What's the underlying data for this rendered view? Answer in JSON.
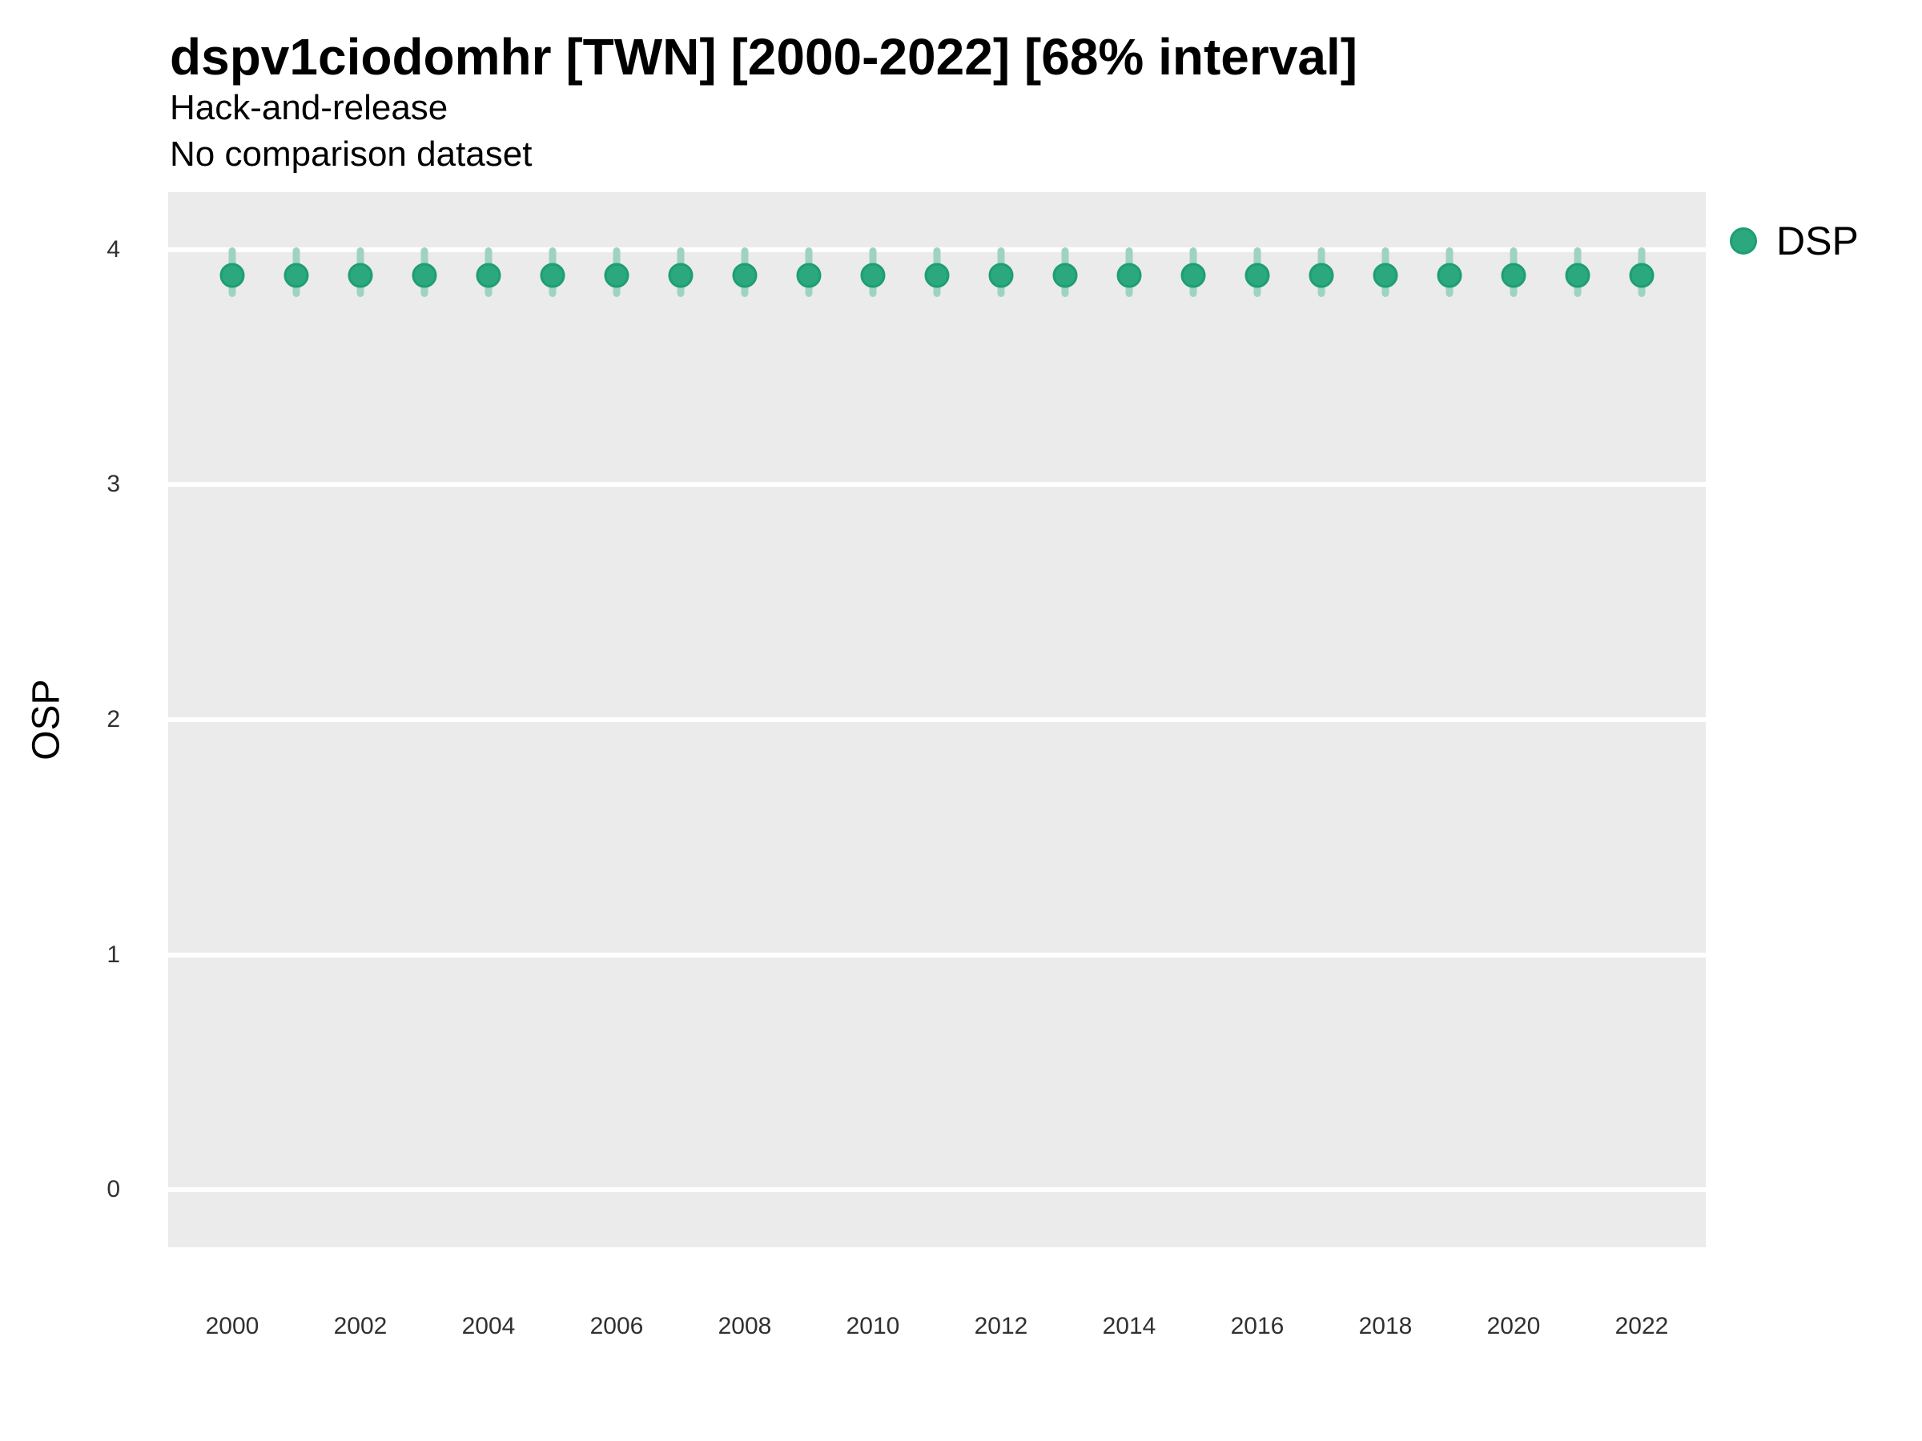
{
  "header": {
    "title": "dspv1ciodomhr [TWN] [2000-2022] [68% interval]",
    "subtitle_line1": "Hack-and-release",
    "subtitle_line2": "No comparison dataset"
  },
  "axes": {
    "y_title": "OSP",
    "y_tick_labels": [
      "0",
      "1",
      "2",
      "3",
      "4"
    ],
    "x_tick_labels": [
      "2000",
      "2002",
      "2004",
      "2006",
      "2008",
      "2010",
      "2012",
      "2014",
      "2016",
      "2018",
      "2020",
      "2022"
    ]
  },
  "legend": {
    "label": "DSP"
  },
  "colors": {
    "panel_bg": "#EBEBEB",
    "grid": "#FFFFFF",
    "point_fill": "#2BA87E",
    "point_ring": "#1E9E72",
    "error_bar": "#9ED4BF"
  },
  "chart_data": {
    "type": "scatter",
    "title": "dspv1ciodomhr [TWN] [2000-2022] [68% interval]",
    "subtitle": [
      "Hack-and-release",
      "No comparison dataset"
    ],
    "xlabel": "",
    "ylabel": "OSP",
    "xlim": [
      1999,
      2023
    ],
    "ylim": [
      -0.245,
      4.245
    ],
    "x_ticks": [
      2000,
      2002,
      2004,
      2006,
      2008,
      2010,
      2012,
      2014,
      2016,
      2018,
      2020,
      2022
    ],
    "y_ticks": [
      0,
      1,
      2,
      3,
      4
    ],
    "grid": "horizontal-major-only",
    "legend_position": "right",
    "interval_label": "68% interval",
    "series": [
      {
        "name": "DSP",
        "x": [
          2000,
          2001,
          2002,
          2003,
          2004,
          2005,
          2006,
          2007,
          2008,
          2009,
          2010,
          2011,
          2012,
          2013,
          2014,
          2015,
          2016,
          2017,
          2018,
          2019,
          2020,
          2021,
          2022
        ],
        "y": [
          3.89,
          3.89,
          3.89,
          3.89,
          3.89,
          3.89,
          3.89,
          3.89,
          3.89,
          3.89,
          3.89,
          3.89,
          3.89,
          3.89,
          3.89,
          3.89,
          3.89,
          3.89,
          3.89,
          3.89,
          3.89,
          3.89,
          3.89
        ],
        "y_low": [
          3.8,
          3.8,
          3.8,
          3.8,
          3.8,
          3.8,
          3.8,
          3.8,
          3.8,
          3.8,
          3.8,
          3.8,
          3.8,
          3.8,
          3.8,
          3.8,
          3.8,
          3.8,
          3.8,
          3.8,
          3.8,
          3.8,
          3.8
        ],
        "y_high": [
          4.01,
          4.01,
          4.01,
          4.01,
          4.01,
          4.01,
          4.01,
          4.01,
          4.01,
          4.01,
          4.01,
          4.01,
          4.01,
          4.01,
          4.01,
          4.01,
          4.01,
          4.01,
          4.01,
          4.01,
          4.01,
          4.01,
          4.01
        ]
      }
    ]
  }
}
